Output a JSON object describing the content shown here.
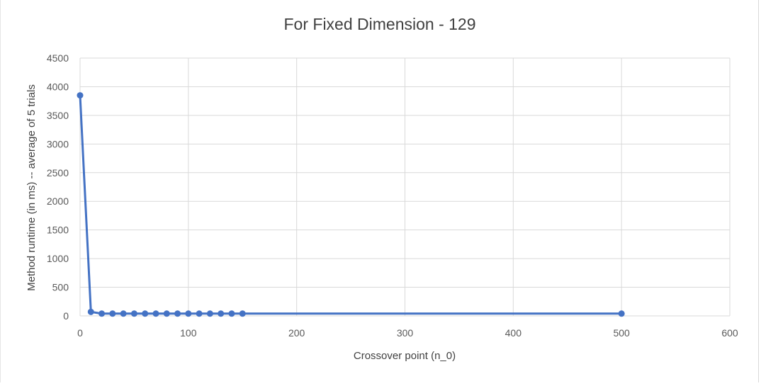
{
  "chart_data": {
    "type": "line",
    "title": "For Fixed Dimension - 129",
    "xlabel": "Crossover point (n_0)",
    "ylabel": "Method runtime (in ms) -- average of 5 trials",
    "xlim": [
      0,
      600
    ],
    "ylim": [
      0,
      4500
    ],
    "x_ticks": [
      "0",
      "100",
      "200",
      "300",
      "400",
      "500",
      "600"
    ],
    "y_ticks": [
      "0",
      "500",
      "1000",
      "1500",
      "2000",
      "2500",
      "3000",
      "3500",
      "4000",
      "4500"
    ],
    "grid": true,
    "legend": "none",
    "series": [
      {
        "color": "#4472c4",
        "marker": "circle",
        "points": [
          {
            "x": 0,
            "y": 3850
          },
          {
            "x": 10,
            "y": 70
          },
          {
            "x": 20,
            "y": 40
          },
          {
            "x": 30,
            "y": 40
          },
          {
            "x": 40,
            "y": 40
          },
          {
            "x": 50,
            "y": 40
          },
          {
            "x": 60,
            "y": 40
          },
          {
            "x": 70,
            "y": 40
          },
          {
            "x": 80,
            "y": 40
          },
          {
            "x": 90,
            "y": 40
          },
          {
            "x": 100,
            "y": 40
          },
          {
            "x": 110,
            "y": 40
          },
          {
            "x": 120,
            "y": 40
          },
          {
            "x": 130,
            "y": 40
          },
          {
            "x": 140,
            "y": 40
          },
          {
            "x": 150,
            "y": 40
          },
          {
            "x": 500,
            "y": 40
          }
        ]
      }
    ]
  },
  "colors": {
    "series": "#4472c4",
    "gridline": "#d9d9d9",
    "text": "#595959"
  }
}
